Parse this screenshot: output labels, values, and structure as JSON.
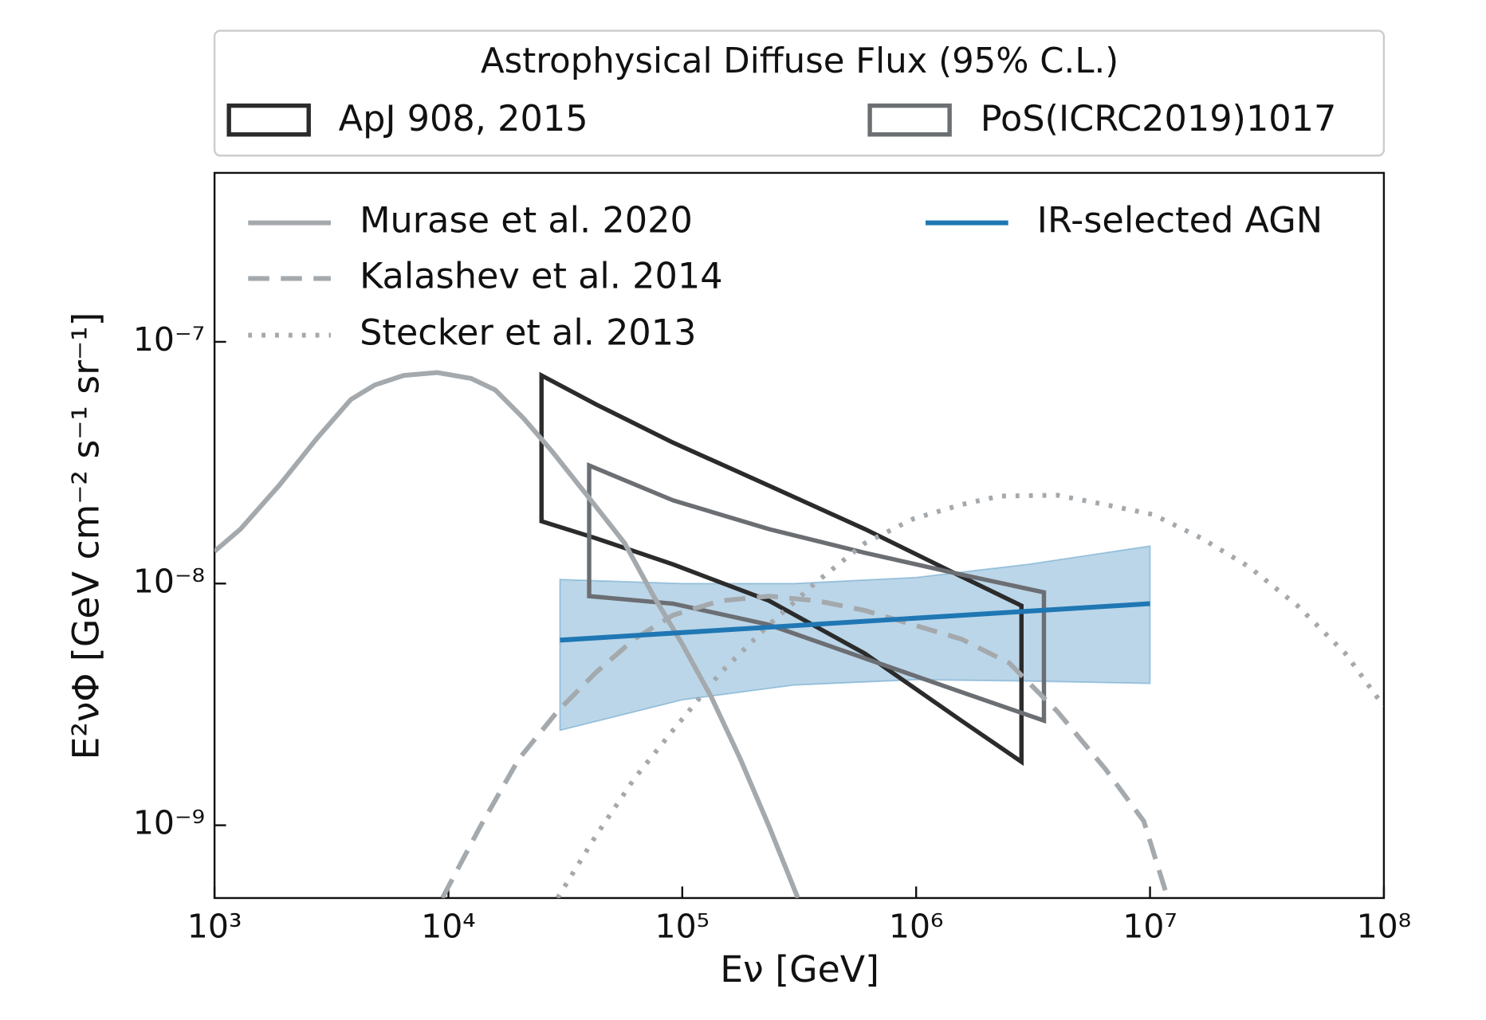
{
  "chart_data": {
    "type": "line",
    "xlabel": "Eν [GeV]",
    "ylabel": "E²νΦ [GeV cm⁻² s⁻¹ sr⁻¹]",
    "xscale": "log",
    "yscale": "log",
    "xlim": [
      1000,
      100000000
    ],
    "ylim": [
      5e-10,
      5e-07
    ],
    "xticks": [
      {
        "value": 1000,
        "label": "10³"
      },
      {
        "value": 10000,
        "label": "10⁴"
      },
      {
        "value": 100000,
        "label": "10⁵"
      },
      {
        "value": 1000000,
        "label": "10⁶"
      },
      {
        "value": 10000000,
        "label": "10⁷"
      },
      {
        "value": 100000000,
        "label": "10⁸"
      }
    ],
    "yticks": [
      {
        "value": 1e-09,
        "label": "10⁻⁹"
      },
      {
        "value": 1e-08,
        "label": "10⁻⁸"
      },
      {
        "value": 1e-07,
        "label": "10⁻⁷"
      }
    ],
    "grid": false,
    "series": [
      {
        "name": "Murase et al. 2020",
        "color": "#a4a9ad",
        "linestyle": "solid",
        "x": [
          1000,
          1291,
          1884,
          2754,
          3830,
          4850,
          6440,
          8970,
          12500,
          15850,
          21000,
          27900,
          40700,
          56700,
          75400,
          100000,
          133000,
          177000,
          235000,
          312000
        ],
        "values": [
          1.36e-08,
          1.68e-08,
          2.54e-08,
          4.01e-08,
          5.78e-08,
          6.63e-08,
          7.26e-08,
          7.46e-08,
          7.06e-08,
          6.33e-08,
          4.82e-08,
          3.5e-08,
          2.21e-08,
          1.47e-08,
          8.87e-09,
          5.62e-09,
          3.4e-09,
          1.88e-09,
          9.9e-10,
          5e-10
        ]
      },
      {
        "name": "Kalashev et al. 2014",
        "color": "#a4a9ad",
        "linestyle": "dashed",
        "x": [
          9420,
          13700,
          20000,
          29300,
          42700,
          62400,
          91200,
          146000,
          235000,
          377000,
          604000,
          970000,
          1560000,
          2500000,
          4010000,
          6440000,
          9400000,
          11900000
        ],
        "values": [
          5e-10,
          9.9e-10,
          1.88e-09,
          2.96e-09,
          4.28e-09,
          5.89e-09,
          7.4e-09,
          8.49e-09,
          8.87e-09,
          8.49e-09,
          7.74e-09,
          6.75e-09,
          5.89e-09,
          4.69e-09,
          2.96e-09,
          1.71e-09,
          1.04e-09,
          5e-10
        ]
      },
      {
        "name": "Stecker et al. 2013",
        "color": "#a4a9ad",
        "linestyle": "dotted",
        "x": [
          29300,
          42700,
          62400,
          91200,
          146000,
          235000,
          377000,
          604000,
          970000,
          1560000,
          2280000,
          4010000,
          6440000,
          10300000,
          16600000,
          26600000,
          42700000,
          68500000,
          100000000
        ],
        "values": [
          5e-10,
          9.04e-10,
          1.56e-09,
          2.47e-09,
          4.28e-09,
          6.75e-09,
          1.02e-08,
          1.47e-08,
          1.85e-08,
          2.12e-08,
          2.3e-08,
          2.32e-08,
          2.12e-08,
          1.93e-08,
          1.54e-08,
          1.17e-08,
          8.1e-09,
          5.13e-09,
          3.1e-09
        ]
      },
      {
        "name": "IR-selected AGN",
        "color": "#1f77b4",
        "linestyle": "solid",
        "x": [
          30000,
          10000000
        ],
        "values": [
          5.83e-09,
          8.26e-09
        ]
      }
    ],
    "band": {
      "color": "#1f77b4",
      "x": [
        30000,
        100000,
        300000,
        1000000,
        3000000,
        10000000
      ],
      "upper": [
        1.04e-08,
        1e-08,
        1e-08,
        1.06e-08,
        1.2e-08,
        1.43e-08
      ],
      "lower": [
        2.47e-09,
        3.3e-09,
        3.8e-09,
        4e-09,
        3.95e-09,
        3.86e-09
      ]
    },
    "legend_title": "Astrophysical Diffuse Flux (95% C.L.)",
    "regions": [
      {
        "name": "ApJ 908, 2015",
        "color": "#2b2b2b",
        "x": [
          25000,
          42700,
          91200,
          235000,
          604000,
          1560000,
          2820000
        ],
        "upper": [
          7.26e-08,
          5.52e-08,
          3.83e-08,
          2.54e-08,
          1.68e-08,
          1.07e-08,
          8.1e-09
        ],
        "lower": [
          1.81e-08,
          1.54e-08,
          1.2e-08,
          8.49e-09,
          5.13e-09,
          2.71e-09,
          1.83e-09
        ]
      },
      {
        "name": "PoS(ICRC2019)1017",
        "color": "#6b6e73",
        "x": [
          40000,
          91200,
          235000,
          604000,
          1560000,
          3520000
        ],
        "upper": [
          3.08e-08,
          2.21e-08,
          1.68e-08,
          1.34e-08,
          1.09e-08,
          9.2e-09
        ],
        "lower": [
          8.87e-09,
          8.26e-09,
          6.75e-09,
          4.9e-09,
          3.56e-09,
          2.71e-09
        ]
      }
    ]
  }
}
